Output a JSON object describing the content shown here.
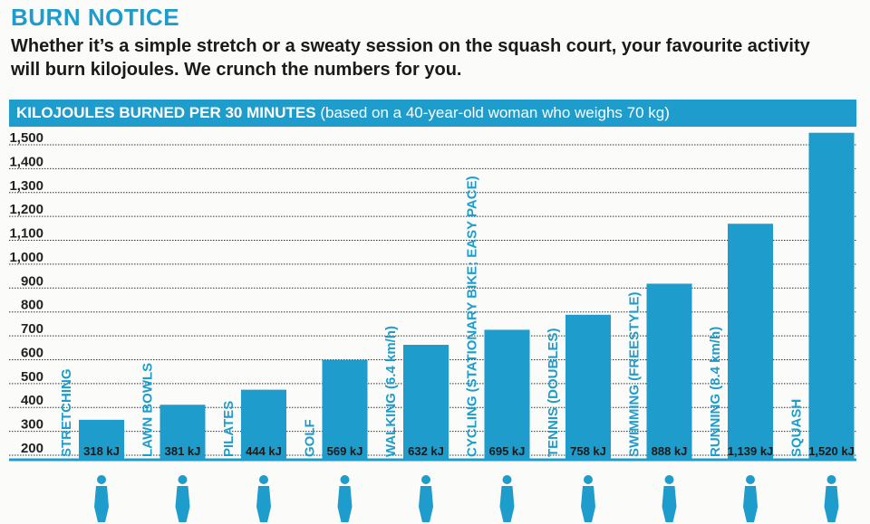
{
  "header": {
    "title": "BURN NOTICE",
    "subtitle": "Whether it’s a simple stretch or a sweaty session on the squash court, your favourite activity will burn kilojoules. We crunch the numbers for you."
  },
  "chart_data": {
    "type": "bar",
    "title": "KILOJOULES BURNED PER 30 MINUTES",
    "subtitle": "(based on a 40-year-old woman who weighs 70 kg)",
    "categories": [
      "STRETCHING",
      "LAWN BOWLS",
      "PILATES",
      "GOLF",
      "WALKING (6.4 km/h)",
      "CYCLING (STATIONARY BIKE; EASY PACE)",
      "TENNIS (DOUBLES)",
      "SWIMMING (FREESTYLE)",
      "RUNNING (8.4 km/h)",
      "SQUASH"
    ],
    "values": [
      318,
      381,
      444,
      569,
      632,
      695,
      758,
      888,
      1139,
      1520
    ],
    "value_labels": [
      "318 kJ",
      "381 kJ",
      "444 kJ",
      "569 kJ",
      "632 kJ",
      "695 kJ",
      "758 kJ",
      "888 kJ",
      "1,139 kJ",
      "1,520 kJ"
    ],
    "yticks": [
      200,
      300,
      400,
      500,
      600,
      700,
      800,
      900,
      1000,
      1100,
      1200,
      1300,
      1400,
      1500
    ],
    "ytick_labels": [
      "200",
      "300",
      "400",
      "500",
      "600",
      "700",
      "800",
      "900",
      "1,000",
      "1,100",
      "1,200",
      "1,300",
      "1,400",
      "1,500"
    ],
    "ylim": [
      200,
      1500
    ],
    "grid": true,
    "bar_color": "#1e9ccb"
  }
}
